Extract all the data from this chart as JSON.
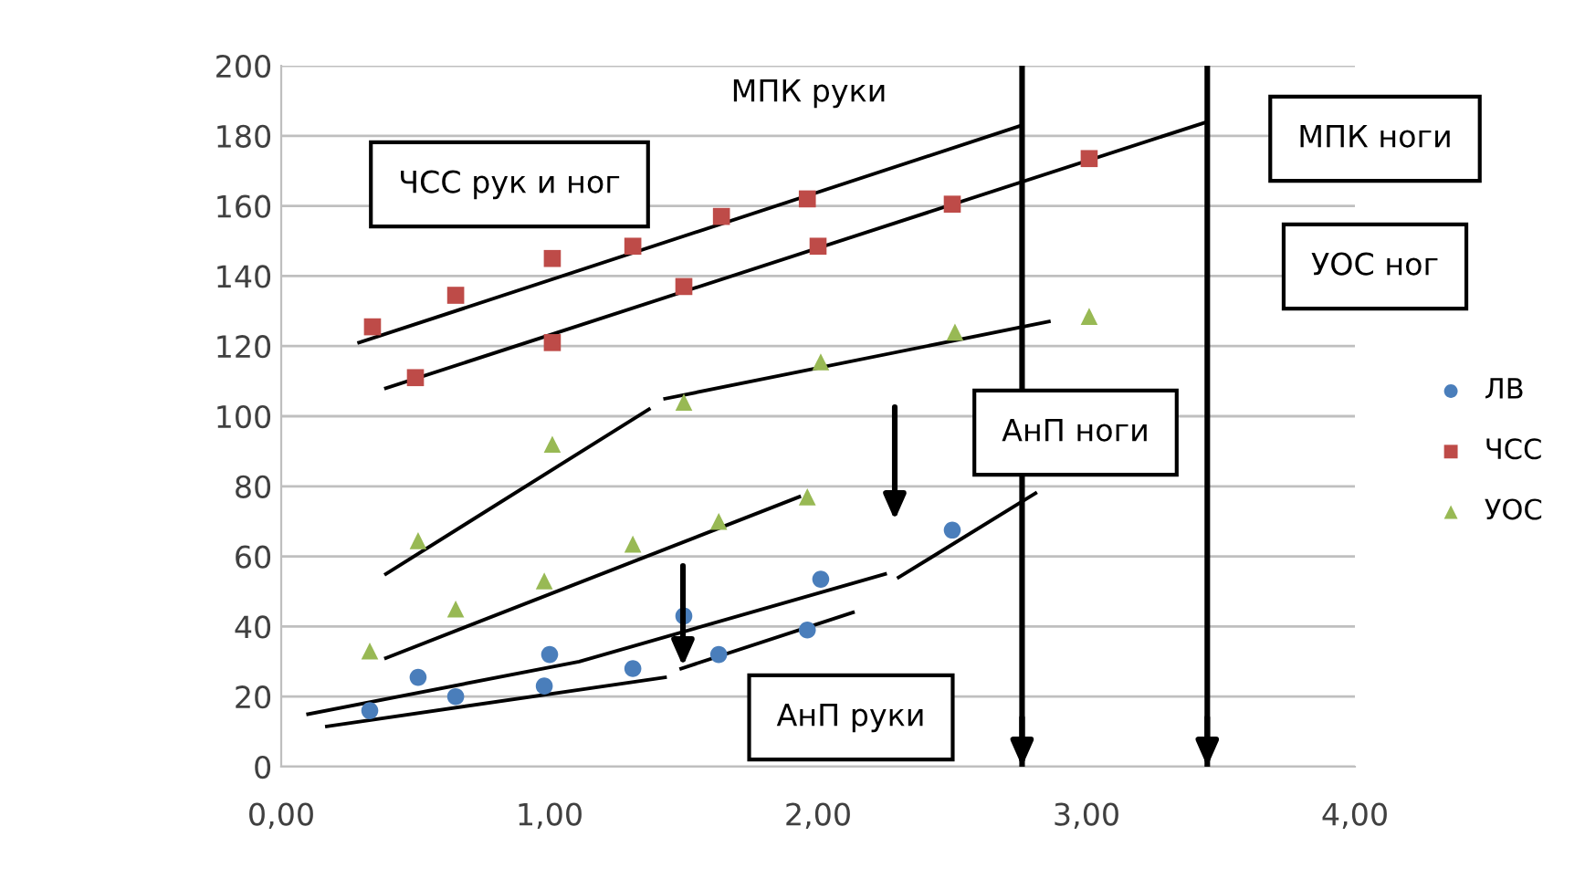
{
  "chart_data": {
    "type": "scatter",
    "xlim": [
      0,
      4
    ],
    "ylim": [
      0,
      200
    ],
    "xticks": [
      {
        "value": 0,
        "label": "0,00"
      },
      {
        "value": 1,
        "label": "1,00"
      },
      {
        "value": 2,
        "label": "2,00"
      },
      {
        "value": 3,
        "label": "3,00"
      },
      {
        "value": 4,
        "label": "4,00"
      }
    ],
    "yticks": [
      0,
      20,
      40,
      60,
      80,
      100,
      120,
      140,
      160,
      180,
      200
    ],
    "grid": "y",
    "legend": "right",
    "series": [
      {
        "name": "ЛВ",
        "color": "#4a7ebb",
        "marker": "circle",
        "x": [
          0.33,
          0.51,
          0.65,
          0.98,
          1.0,
          1.31,
          1.5,
          1.63,
          1.96,
          2.01,
          2.5
        ],
        "values": [
          16,
          25.5,
          20,
          23,
          32,
          28,
          43,
          32,
          39,
          53.5,
          67.5
        ]
      },
      {
        "name": "ЧСС",
        "color": "#be4b48",
        "marker": "square",
        "x": [
          0.34,
          0.5,
          0.65,
          1.01,
          1.01,
          1.31,
          1.5,
          1.64,
          1.96,
          2.0,
          2.5,
          3.01
        ],
        "values": [
          125.5,
          111,
          134.5,
          145,
          121,
          148.5,
          137,
          157,
          162,
          148.5,
          160.5,
          173.5
        ]
      },
      {
        "name": "УОС",
        "color": "#98b954",
        "marker": "triangle",
        "x": [
          0.33,
          0.51,
          0.65,
          1.01,
          0.98,
          1.31,
          1.5,
          1.63,
          1.96,
          2.01,
          2.51,
          3.01
        ],
        "values": [
          33,
          64.5,
          45,
          92,
          53,
          63.5,
          104,
          70,
          77,
          115.5,
          124,
          128.5
        ]
      },
      {
        "type": "line",
        "color": "#000000",
        "marker": "none",
        "x": [
          0.29,
          2.76
        ],
        "values": [
          121,
          183
        ]
      },
      {
        "type": "line",
        "color": "#000000",
        "marker": "none",
        "x": [
          0.39,
          3.45
        ],
        "values": [
          108,
          184
        ]
      },
      {
        "type": "line",
        "color": "#000000",
        "marker": "none",
        "x": [
          0.39,
          1.37
        ],
        "values": [
          55,
          102
        ]
      },
      {
        "type": "line",
        "color": "#000000",
        "marker": "none",
        "x": [
          1.43,
          2.86
        ],
        "values": [
          105,
          127
        ]
      },
      {
        "type": "line",
        "color": "#000000",
        "marker": "none",
        "x": [
          0.39,
          1.93
        ],
        "values": [
          31,
          77
        ]
      },
      {
        "type": "line",
        "color": "#000000",
        "marker": "none",
        "x": [
          0.1,
          1.11,
          2.25
        ],
        "values": [
          15,
          30,
          55
        ]
      },
      {
        "type": "line",
        "color": "#000000",
        "marker": "none",
        "x": [
          2.3,
          2.81
        ],
        "values": [
          54,
          78
        ]
      },
      {
        "type": "line",
        "color": "#000000",
        "marker": "none",
        "x": [
          0.17,
          1.43
        ],
        "values": [
          11.5,
          25.5
        ]
      },
      {
        "type": "line",
        "color": "#000000",
        "marker": "none",
        "x": [
          1.49,
          2.13
        ],
        "values": [
          28,
          44
        ]
      }
    ],
    "ref_lines": [
      {
        "axis": "x",
        "value": 2.76,
        "color": "#000000"
      },
      {
        "axis": "x",
        "value": 3.45,
        "color": "#000000"
      }
    ],
    "annotations": [
      "ЧСС рук и ног",
      "УОС ног",
      "АнП ноги",
      "АнП руки",
      "МПК руки",
      "МПК ноги"
    ]
  }
}
